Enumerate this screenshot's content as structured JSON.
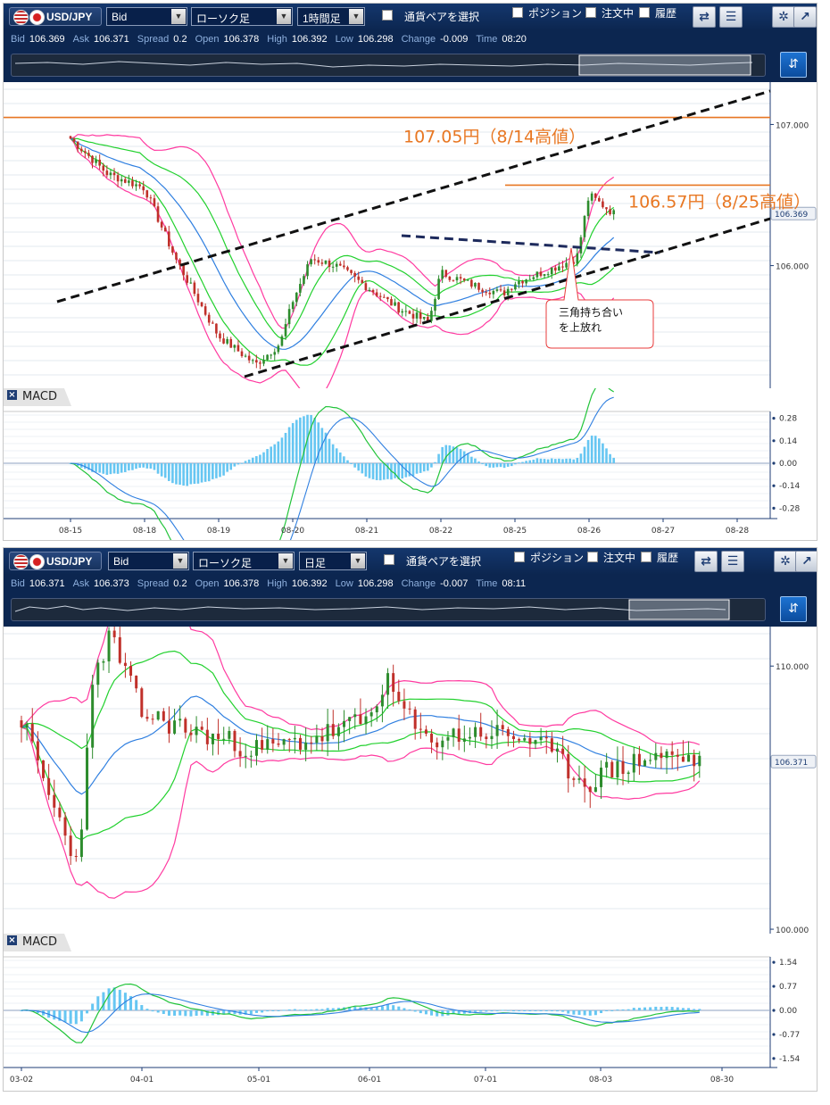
{
  "chart1": {
    "toolbar": {
      "pair": "USD/JPY",
      "price_type": "Bid",
      "chart_type": "ローソク足",
      "timeframe": "1時間足",
      "select_pair_label": "通貨ペアを選択",
      "position_label": "ポジション",
      "order_label": "注文中",
      "history_label": "履歴"
    },
    "info": {
      "bid_label": "Bid",
      "bid": "106.369",
      "ask_label": "Ask",
      "ask": "106.371",
      "spread_label": "Spread",
      "spread": "0.2",
      "open_label": "Open",
      "open": "106.378",
      "high_label": "High",
      "high": "106.392",
      "low_label": "Low",
      "low": "106.298",
      "change_label": "Change",
      "change": "-0.009",
      "time_label": "Time",
      "time": "08:20"
    },
    "annotations": {
      "level1": "107.05円（8/14高値）",
      "level2": "106.57円（8/25高値）",
      "note_line1": "三角持ち合い",
      "note_line2": "を上放れ"
    },
    "current_price": "106.369",
    "macd_label": "MACD",
    "colors": {
      "bull": "#2d8c2d",
      "bear": "#c0302a",
      "bollinger_outer": "#ff3aa0",
      "bollinger_inner": "#22d12e",
      "sma": "#2f7fe0",
      "histogram": "#66c6f2",
      "annotation": "#e87722"
    }
  },
  "chart2": {
    "toolbar": {
      "pair": "USD/JPY",
      "price_type": "Bid",
      "chart_type": "ローソク足",
      "timeframe": "日足",
      "select_pair_label": "通貨ペアを選択",
      "position_label": "ポジション",
      "order_label": "注文中",
      "history_label": "履歴"
    },
    "info": {
      "bid_label": "Bid",
      "bid": "106.371",
      "ask_label": "Ask",
      "ask": "106.373",
      "spread_label": "Spread",
      "spread": "0.2",
      "open_label": "Open",
      "open": "106.378",
      "high_label": "High",
      "high": "106.392",
      "low_label": "Low",
      "low": "106.298",
      "change_label": "Change",
      "change": "-0.007",
      "time_label": "Time",
      "time": "08:11"
    },
    "current_price": "106.371",
    "macd_label": "MACD"
  },
  "chart_data": [
    {
      "type": "candlestick",
      "title": "USD/JPY 1時間足",
      "x_ticks": [
        "08-15",
        "08-18",
        "08-19",
        "08-20",
        "08-21",
        "08-22",
        "08-25",
        "08-26",
        "08-27",
        "08-28"
      ],
      "y_ticks": [
        "107.000",
        "106.000"
      ],
      "ylim": [
        105.15,
        107.3
      ],
      "horizontal_lines": [
        {
          "label": "107.05円（8/14高値）",
          "value": 107.05
        },
        {
          "label": "106.57円（8/25高値）",
          "value": 106.57
        }
      ],
      "series": [
        {
          "name": "close",
          "points": [
            [
              "08-15",
              106.9
            ],
            [
              "08-15 12:00",
              106.65
            ],
            [
              "08-18",
              106.55
            ],
            [
              "08-18 10:00",
              106.05
            ],
            [
              "08-18 20:00",
              105.65
            ],
            [
              "08-19",
              105.5
            ],
            [
              "08-19 12:00",
              105.3
            ],
            [
              "08-19 20:00",
              105.45
            ],
            [
              "08-20",
              105.75
            ],
            [
              "08-20 06:00",
              106.05
            ],
            [
              "08-20 14:00",
              106.0
            ],
            [
              "08-21",
              105.85
            ],
            [
              "08-21 10:00",
              105.7
            ],
            [
              "08-21 20:00",
              105.6
            ],
            [
              "08-22",
              105.95
            ],
            [
              "08-22 12:00",
              105.85
            ],
            [
              "08-22 20:00",
              105.8
            ],
            [
              "08-25",
              105.88
            ],
            [
              "08-25 12:00",
              105.98
            ],
            [
              "08-25 20:00",
              106.05
            ],
            [
              "08-26",
              106.5
            ],
            [
              "08-26 08:00",
              106.37
            ]
          ]
        }
      ],
      "macd": {
        "ylim": [
          -0.3,
          0.3
        ],
        "y_ticks": [
          "0.28",
          "0.14",
          "0.00",
          "-0.14",
          "-0.28"
        ]
      }
    },
    {
      "type": "candlestick",
      "title": "USD/JPY 日足",
      "x_ticks": [
        "03-02",
        "04-01",
        "05-01",
        "06-01",
        "07-01",
        "08-03",
        "08-30"
      ],
      "y_ticks": [
        "110.000",
        "100.000"
      ],
      "ylim": [
        99.9,
        111.5
      ],
      "series": [
        {
          "name": "close",
          "points": [
            [
              "03-02",
              108.0
            ],
            [
              "03-09",
              105.0
            ],
            [
              "03-16",
              102.5
            ],
            [
              "03-20",
              109.5
            ],
            [
              "03-24",
              111.2
            ],
            [
              "04-01",
              108.2
            ],
            [
              "04-15",
              107.5
            ],
            [
              "05-01",
              106.8
            ],
            [
              "05-15",
              107.2
            ],
            [
              "06-01",
              108.0
            ],
            [
              "06-05",
              109.5
            ],
            [
              "06-15",
              107.2
            ],
            [
              "07-01",
              107.5
            ],
            [
              "07-15",
              107.2
            ],
            [
              "07-30",
              105.5
            ],
            [
              "08-03",
              105.9
            ],
            [
              "08-15",
              106.6
            ],
            [
              "08-25",
              106.4
            ]
          ]
        }
      ],
      "macd": {
        "ylim": [
          -1.6,
          1.6
        ],
        "y_ticks": [
          "1.54",
          "0.77",
          "0.00",
          "-0.77",
          "-1.54"
        ]
      }
    }
  ]
}
